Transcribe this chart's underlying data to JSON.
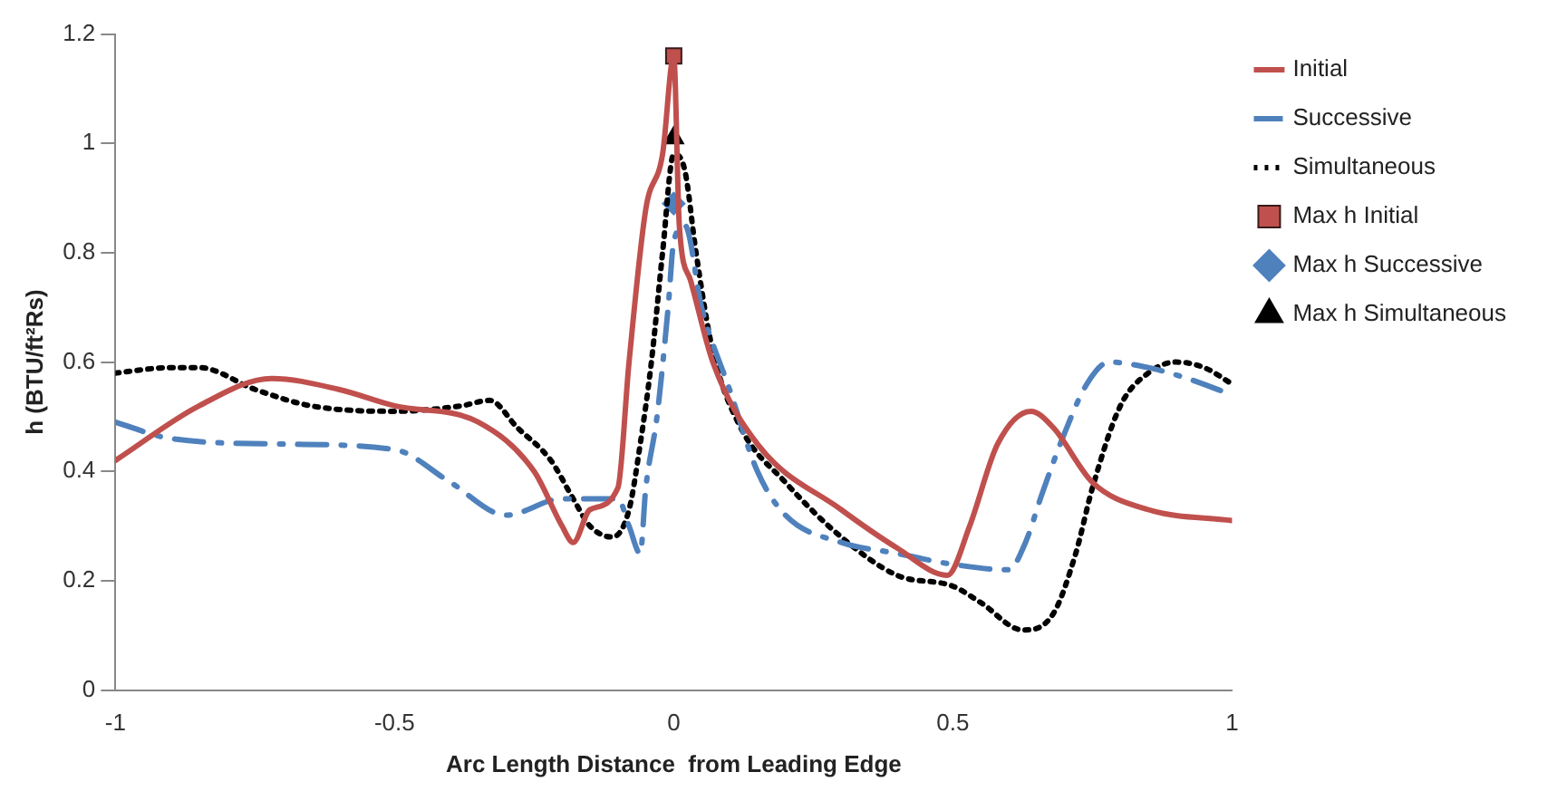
{
  "chart_data": {
    "type": "line",
    "xlabel": "Arc Length Distance  from Leading Edge",
    "ylabel": "h (BTU/ft²Rs)",
    "xlim": [
      -1,
      1
    ],
    "xticks": [
      -1,
      -0.5,
      0,
      0.5,
      1
    ],
    "ylim": [
      0,
      1.2
    ],
    "yticks": [
      0,
      0.2,
      0.4,
      0.6,
      0.8,
      1,
      1.2
    ],
    "grid": false,
    "legend": "right",
    "series": [
      {
        "name": "Initial",
        "color": "#c0504d",
        "line_style": "solid",
        "marker": "none",
        "x": [
          -1,
          -0.85,
          -0.72,
          -0.6,
          -0.5,
          -0.35,
          -0.25,
          -0.2,
          -0.18,
          -0.15,
          -0.1,
          -0.08,
          -0.05,
          -0.02,
          0,
          0.01,
          0.03,
          0.07,
          0.15,
          0.3,
          0.4,
          0.49,
          0.53,
          0.58,
          0.64,
          0.68,
          0.75,
          0.85,
          1
        ],
        "values": [
          0.42,
          0.52,
          0.57,
          0.55,
          0.52,
          0.49,
          0.4,
          0.3,
          0.27,
          0.33,
          0.37,
          0.6,
          0.88,
          0.98,
          1.16,
          0.85,
          0.75,
          0.6,
          0.45,
          0.33,
          0.26,
          0.21,
          0.3,
          0.45,
          0.51,
          0.48,
          0.38,
          0.33,
          0.31
        ]
      },
      {
        "name": "Successive",
        "color": "#4f81bd",
        "line_style": "dashdot",
        "marker": "none",
        "x": [
          -1,
          -0.9,
          -0.7,
          -0.5,
          -0.4,
          -0.3,
          -0.2,
          -0.1,
          -0.08,
          -0.06,
          -0.05,
          -0.03,
          -0.01,
          0,
          0.02,
          0.05,
          0.1,
          0.15,
          0.2,
          0.3,
          0.4,
          0.5,
          0.6,
          0.63,
          0.66,
          0.7,
          0.74,
          0.78,
          0.85,
          0.92,
          1
        ],
        "values": [
          0.49,
          0.46,
          0.45,
          0.44,
          0.38,
          0.32,
          0.35,
          0.35,
          0.3,
          0.25,
          0.37,
          0.5,
          0.7,
          0.82,
          0.85,
          0.7,
          0.55,
          0.4,
          0.32,
          0.27,
          0.25,
          0.23,
          0.22,
          0.27,
          0.36,
          0.47,
          0.56,
          0.6,
          0.59,
          0.57,
          0.54
        ]
      },
      {
        "name": "Simultaneous",
        "color": "#000000",
        "line_style": "dotted",
        "marker": "none",
        "x": [
          -1,
          -0.9,
          -0.85,
          -0.75,
          -0.65,
          -0.5,
          -0.38,
          -0.33,
          -0.28,
          -0.22,
          -0.18,
          -0.15,
          -0.11,
          -0.08,
          -0.06,
          -0.04,
          -0.02,
          0,
          0.02,
          0.04,
          0.07,
          0.12,
          0.2,
          0.3,
          0.4,
          0.5,
          0.55,
          0.625,
          0.68,
          0.72,
          0.75,
          0.8,
          0.85,
          0.9,
          0.95,
          1
        ],
        "values": [
          0.58,
          0.59,
          0.59,
          0.55,
          0.52,
          0.51,
          0.52,
          0.53,
          0.48,
          0.42,
          0.35,
          0.3,
          0.28,
          0.33,
          0.45,
          0.6,
          0.8,
          0.98,
          0.95,
          0.8,
          0.62,
          0.48,
          0.38,
          0.28,
          0.21,
          0.19,
          0.16,
          0.11,
          0.14,
          0.25,
          0.37,
          0.52,
          0.58,
          0.6,
          0.59,
          0.56
        ]
      },
      {
        "name": "Max h Initial",
        "type": "scatter",
        "color": "#c0504d",
        "marker": "square",
        "x": [
          0
        ],
        "values": [
          1.16
        ]
      },
      {
        "name": "Max h Successive",
        "type": "scatter",
        "color": "#4f81bd",
        "marker": "diamond",
        "x": [
          0
        ],
        "values": [
          0.89
        ]
      },
      {
        "name": "Max h Simultaneous",
        "type": "scatter",
        "color": "#000000",
        "marker": "triangle",
        "x": [
          0
        ],
        "values": [
          1.01
        ]
      }
    ]
  }
}
